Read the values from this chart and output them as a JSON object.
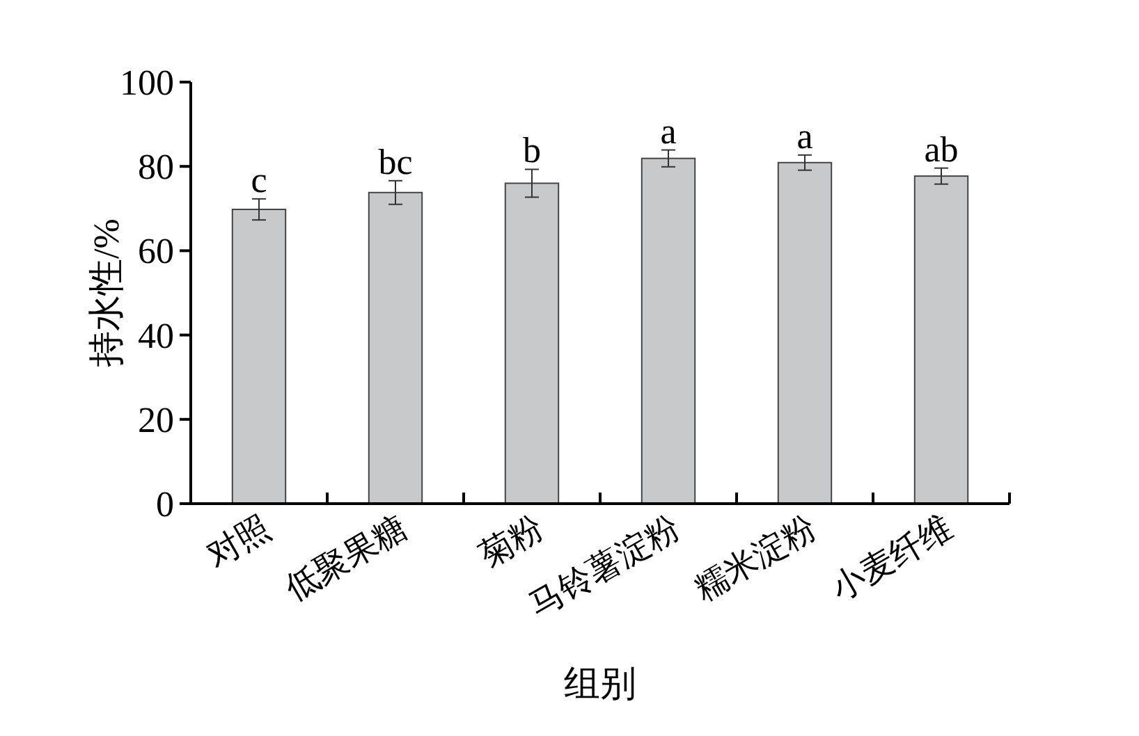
{
  "chart_data": {
    "type": "bar",
    "xlabel": "组别",
    "ylabel": "持水性/%",
    "categories": [
      "对照",
      "低聚果糖",
      "菊粉",
      "马铃薯淀粉",
      "糯米淀粉",
      "小麦纤维"
    ],
    "values": [
      69.8,
      73.8,
      76.0,
      81.9,
      80.9,
      77.7
    ],
    "errors": [
      2.5,
      2.8,
      3.3,
      2.0,
      1.8,
      1.9
    ],
    "color": "#c8c9cb",
    "ylim": [
      0,
      100
    ],
    "yticks": [
      0,
      20,
      40,
      60,
      80,
      100
    ],
    "grid": false,
    "annotations": [
      {
        "text": "c",
        "x": "对照",
        "y": 72.3
      },
      {
        "text": "bc",
        "x": "低聚果糖",
        "y": 76.6
      },
      {
        "text": "b",
        "x": "菊粉",
        "y": 79.3
      },
      {
        "text": "a",
        "x": "马铃薯淀粉",
        "y": 83.9
      },
      {
        "text": "a",
        "x": "糯米淀粉",
        "y": 82.7
      },
      {
        "text": "ab",
        "x": "小麦纤维",
        "y": 79.6
      }
    ]
  }
}
